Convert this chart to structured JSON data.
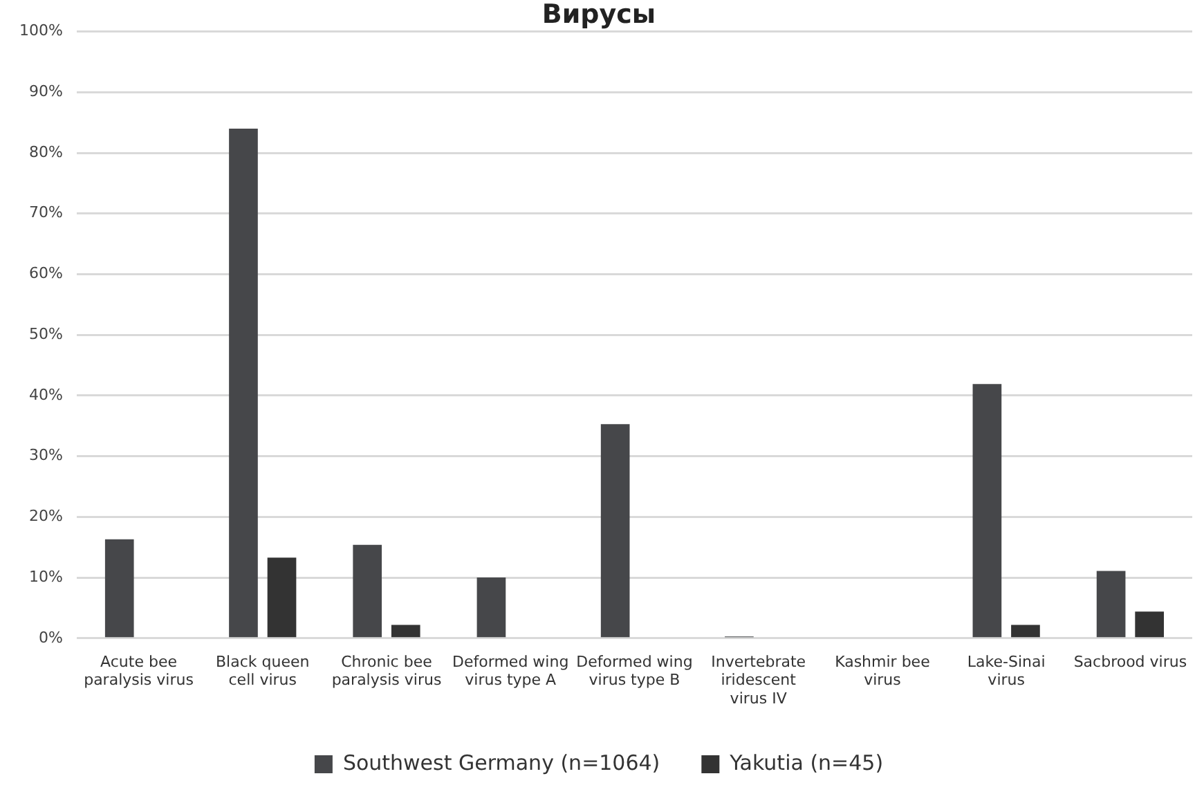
{
  "chart_data": {
    "type": "bar",
    "title": "Вирусы",
    "categories": [
      "Acute bee paralysis virus",
      "Black queen cell virus",
      "Chronic bee paralysis virus",
      "Deformed wing virus type A",
      "Deformed wing virus type B",
      "Invertebrate iridescent virus IV",
      "Kashmir bee virus",
      "Lake-Sinai virus",
      "Sacbrood virus"
    ],
    "series": [
      {
        "name": "Southwest Germany (n=1064)",
        "color": "#46474a",
        "values": [
          16.3,
          84,
          15.4,
          10,
          35.3,
          0.3,
          0,
          41.9,
          11.1
        ]
      },
      {
        "name": "Yakutia (n=45)",
        "color": "#333333",
        "values": [
          0,
          13.3,
          2.2,
          0,
          0,
          0,
          0,
          2.2,
          4.4
        ]
      }
    ],
    "ylim": [
      0,
      100
    ],
    "yticks": [
      {
        "value": 0,
        "label": "0%"
      },
      {
        "value": 10,
        "label": "10%"
      },
      {
        "value": 20,
        "label": "20%"
      },
      {
        "value": 30,
        "label": "30%"
      },
      {
        "value": 40,
        "label": "40%"
      },
      {
        "value": 50,
        "label": "50%"
      },
      {
        "value": 60,
        "label": "60%"
      },
      {
        "value": 70,
        "label": "70%"
      },
      {
        "value": 80,
        "label": "80%"
      },
      {
        "value": 90,
        "label": "90%"
      },
      {
        "value": 100,
        "label": "100%"
      }
    ],
    "grid": "y",
    "legend": "bottom"
  }
}
